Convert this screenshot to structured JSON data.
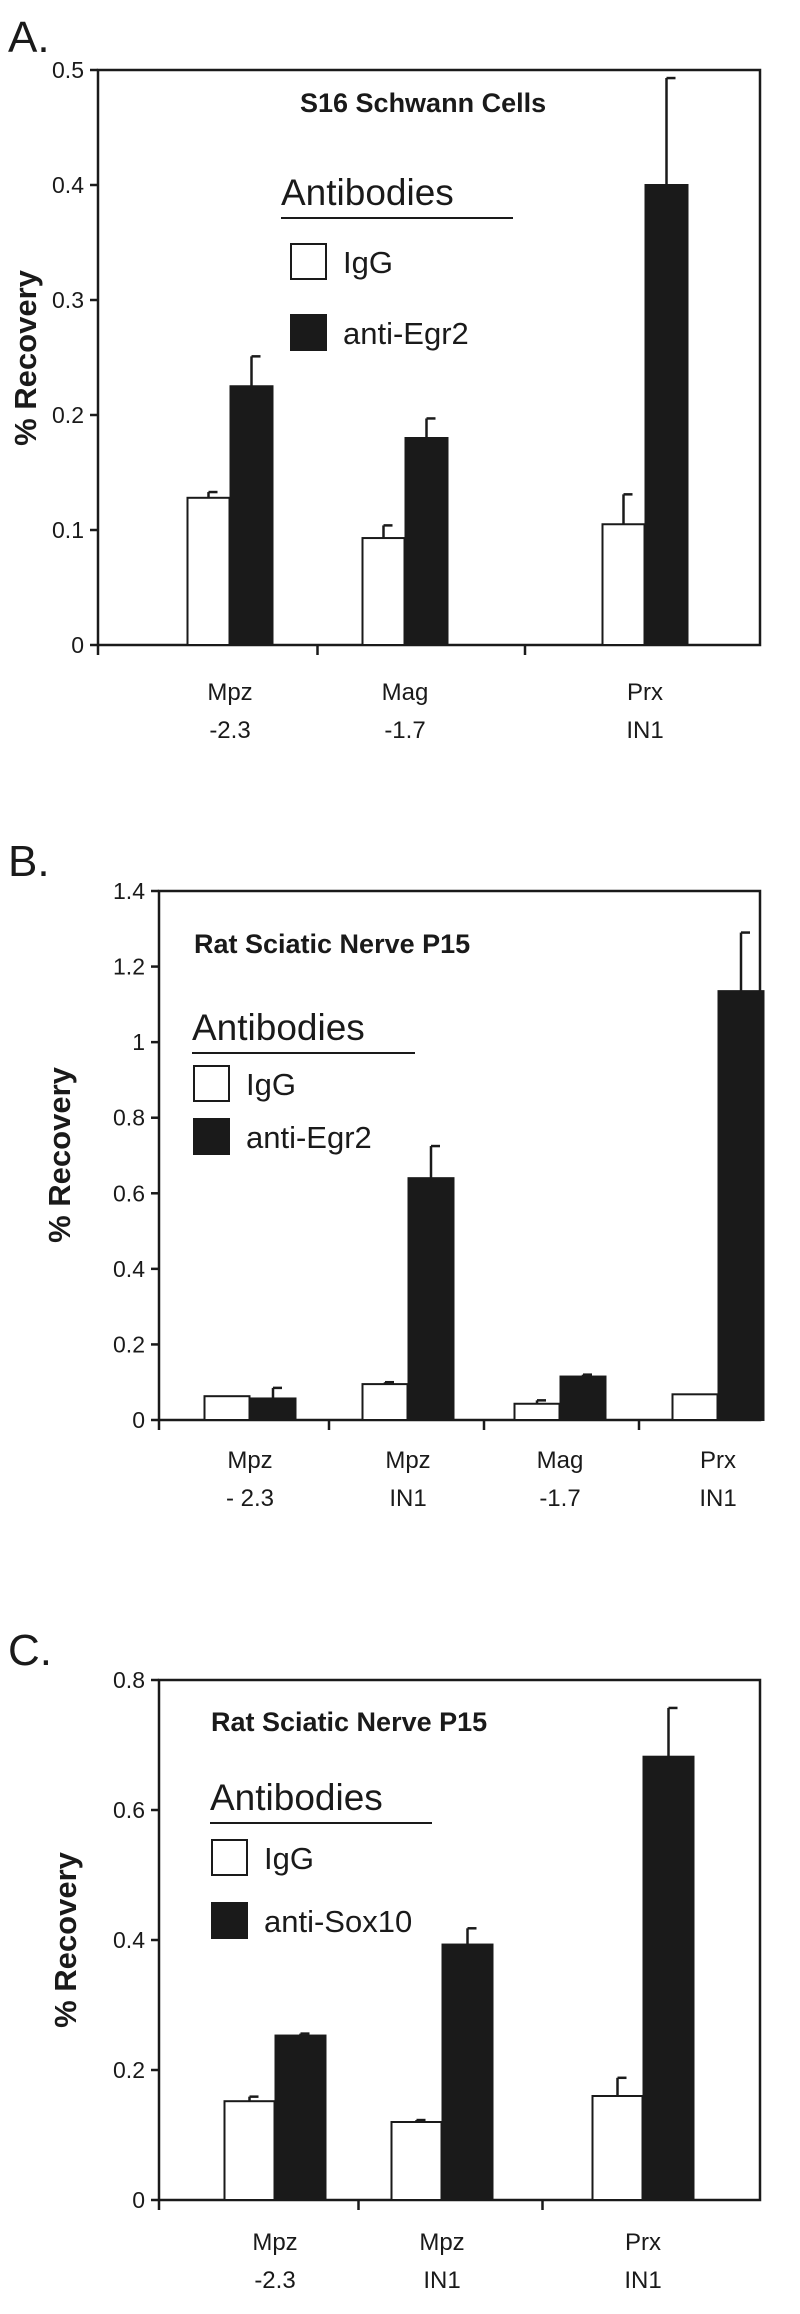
{
  "chart_data": [
    {
      "type": "bar",
      "panel": "A.",
      "title": "S16 Schwann Cells",
      "ylabel": "% Recovery",
      "xlabel": "",
      "ylim": [
        0,
        0.5
      ],
      "yticks": [
        "0",
        "0.1",
        "0.2",
        "0.3",
        "0.4",
        "0.5"
      ],
      "categories": [
        [
          "Mpz",
          "-2.3"
        ],
        [
          "Mag",
          "-1.7"
        ],
        [
          "Prx",
          "IN1"
        ]
      ],
      "legend_title": "Antibodies",
      "legend_position": "top-left",
      "series": [
        {
          "name": "IgG",
          "color": "#ffffff",
          "values": [
            0.128,
            0.093,
            0.105
          ],
          "errors": [
            0.005,
            0.011,
            0.026
          ]
        },
        {
          "name": "anti-Egr2",
          "color": "#1a1a1a",
          "values": [
            0.225,
            0.18,
            0.4
          ],
          "errors": [
            0.026,
            0.017,
            0.093
          ]
        }
      ]
    },
    {
      "type": "bar",
      "panel": "B.",
      "title": "Rat Sciatic Nerve P15",
      "ylabel": "% Recovery",
      "xlabel": "",
      "ylim": [
        0,
        1.4
      ],
      "yticks": [
        "0",
        "0.2",
        "0.4",
        "0.6",
        "0.8",
        "1",
        "1.2",
        "1.4"
      ],
      "categories": [
        [
          "Mpz",
          "- 2.3"
        ],
        [
          "Mpz",
          "IN1"
        ],
        [
          "Mag",
          "-1.7"
        ],
        [
          "Prx",
          "IN1"
        ]
      ],
      "legend_title": "Antibodies",
      "legend_position": "top-left",
      "series": [
        {
          "name": "IgG",
          "color": "#ffffff",
          "values": [
            0.063,
            0.095,
            0.043,
            0.068
          ],
          "errors": [
            0.0,
            0.005,
            0.009,
            0.0
          ]
        },
        {
          "name": "anti-Egr2",
          "color": "#1a1a1a",
          "values": [
            0.057,
            0.64,
            0.115,
            1.135
          ],
          "errors": [
            0.028,
            0.085,
            0.005,
            0.155
          ]
        }
      ]
    },
    {
      "type": "bar",
      "panel": "C.",
      "title": "Rat Sciatic Nerve P15",
      "ylabel": "% Recovery",
      "xlabel": "",
      "ylim": [
        0,
        0.8
      ],
      "yticks": [
        "0",
        "0.2",
        "0.4",
        "0.6",
        "0.8"
      ],
      "categories": [
        [
          "Mpz",
          "-2.3"
        ],
        [
          "Mpz",
          "IN1"
        ],
        [
          "Prx",
          "IN1"
        ]
      ],
      "legend_title": "Antibodies",
      "legend_position": "top-left",
      "series": [
        {
          "name": "IgG",
          "color": "#ffffff",
          "values": [
            0.152,
            0.12,
            0.16
          ],
          "errors": [
            0.007,
            0.003,
            0.028
          ]
        },
        {
          "name": "anti-Sox10",
          "color": "#1a1a1a",
          "values": [
            0.253,
            0.393,
            0.682
          ],
          "errors": [
            0.003,
            0.025,
            0.075
          ]
        }
      ]
    }
  ]
}
